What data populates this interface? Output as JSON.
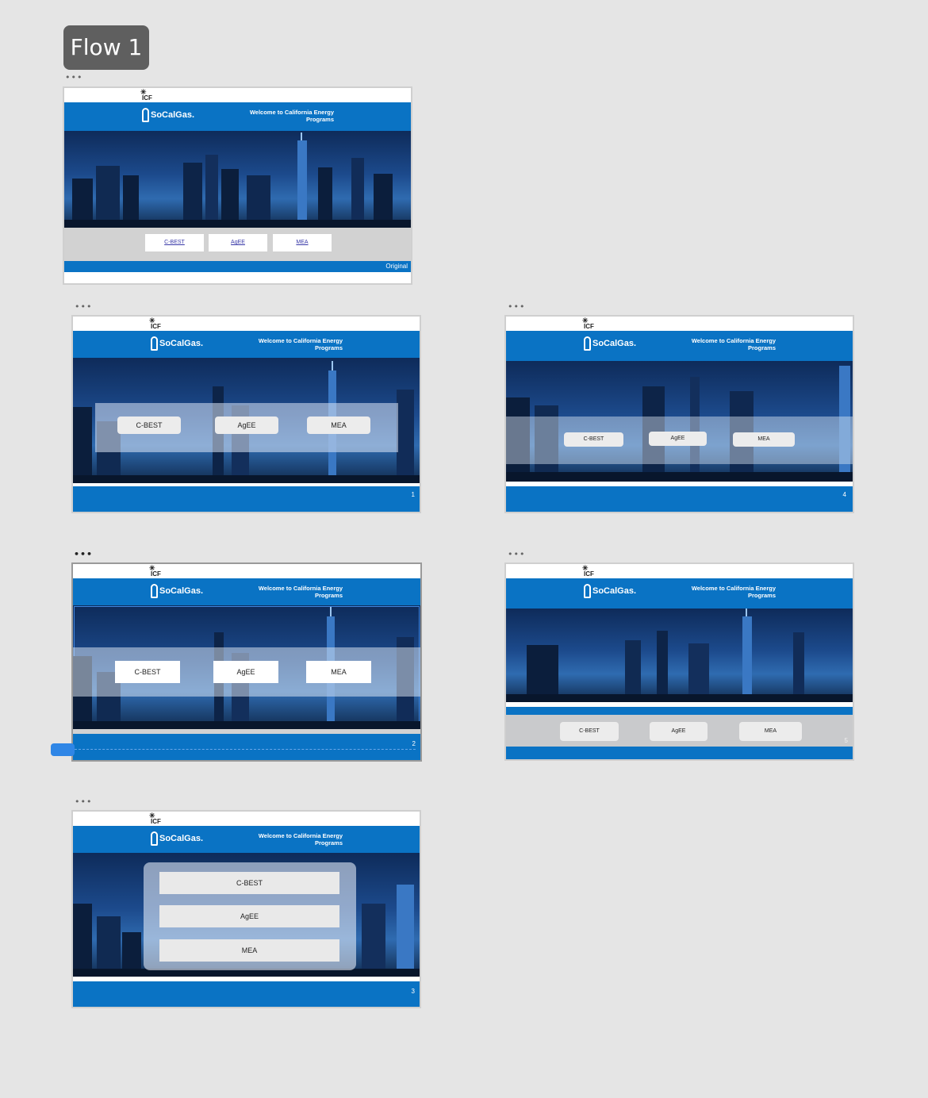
{
  "flow_label": "Flow 1",
  "header": {
    "icf_logo": "ICF",
    "brand_logo": "SoCalGas.",
    "welcome_line1": "Welcome to California Energy",
    "welcome_line2": "Programs"
  },
  "buttons": [
    "C-BEST",
    "AgEE",
    "MEA"
  ],
  "frames": {
    "original": {
      "label": "Original"
    },
    "v1": {
      "number": "1"
    },
    "v2": {
      "number": "2"
    },
    "v3": {
      "number": "3"
    },
    "v4": {
      "number": "4"
    },
    "v5": {
      "number": "5"
    }
  },
  "colors": {
    "brand_blue": "#0a73c4",
    "canvas": "#e5e5e5",
    "connector": "#2f86e6"
  }
}
